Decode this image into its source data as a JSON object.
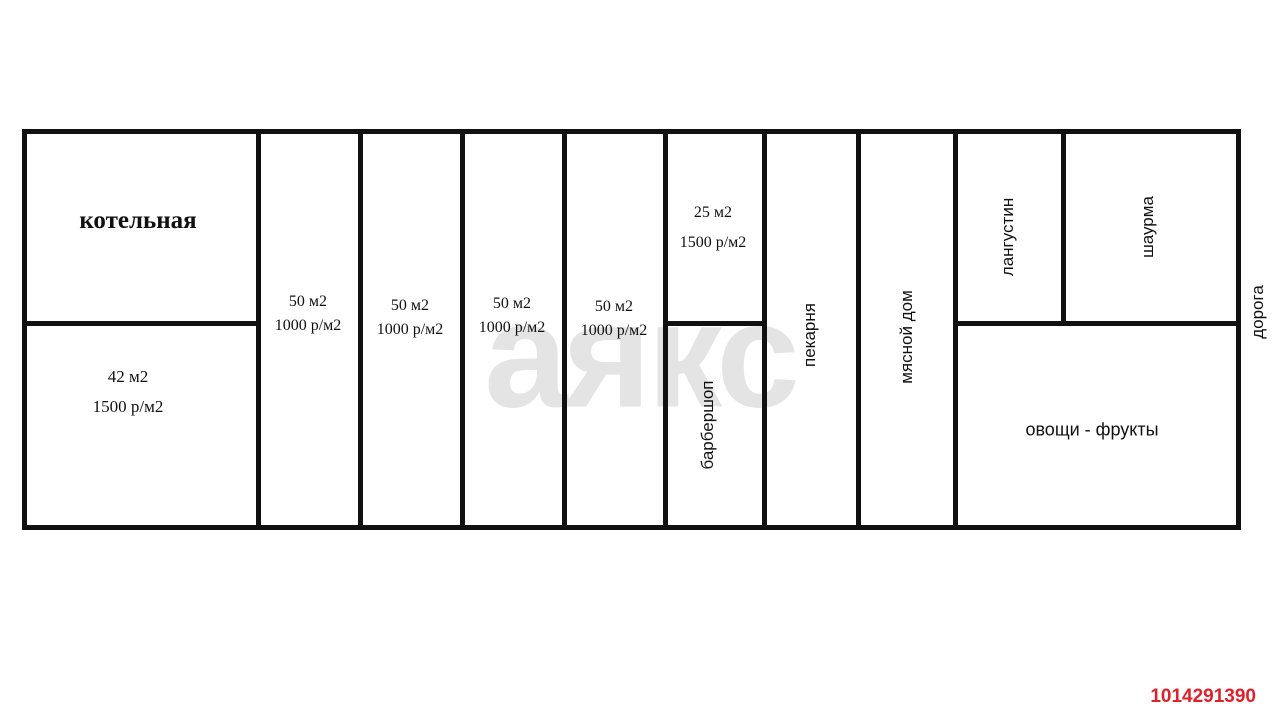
{
  "watermark": "аякс",
  "listing_id": "1014291390",
  "colors": {
    "walls": "#111111",
    "id": "#e0202a",
    "watermark": "#e4e4e4"
  },
  "rooms": {
    "boiler": "котельная",
    "r42": {
      "area": "42 м2",
      "price": "1500 р/м2"
    },
    "r50a": {
      "area": "50 м2",
      "price": "1000 р/м2"
    },
    "r50b": {
      "area": "50 м2",
      "price": "1000 р/м2"
    },
    "r50c": {
      "area": "50 м2",
      "price": "1000 р/м2"
    },
    "r50d": {
      "area": "50 м2",
      "price": "1000 р/м2"
    },
    "r25": {
      "area": "25 м2",
      "price": "1500 р/м2"
    },
    "barber": "барбершоп",
    "bakery": "пекарня",
    "meat": "мясной дом",
    "langustin": "лангустин",
    "shawarma": "шаурма",
    "fruits": "овощи - фрукты"
  },
  "road": "дорога"
}
